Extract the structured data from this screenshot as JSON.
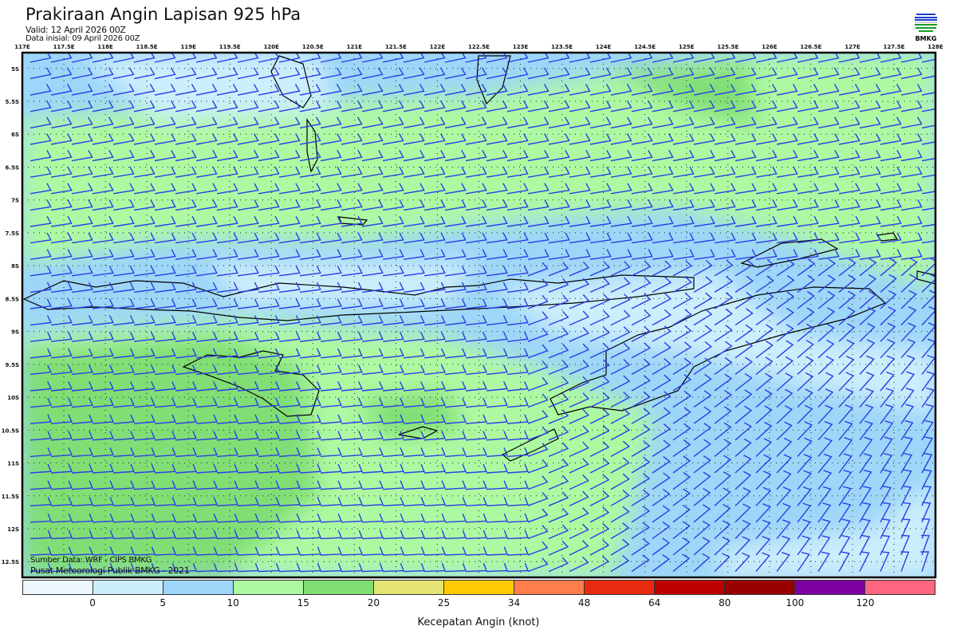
{
  "header": {
    "title": "Prakiraan Angin Lapisan 925 hPa",
    "valid": "Valid: 12 April 2026 00Z",
    "initial": "Data inisial: 09 April 2026 00Z",
    "logo_text": "BMKG"
  },
  "map": {
    "lon_labels": [
      "117E",
      "117.5E",
      "118E",
      "118.5E",
      "119E",
      "119.5E",
      "120E",
      "120.5E",
      "121E",
      "121.5E",
      "122E",
      "122.5E",
      "123E",
      "123.5E",
      "124E",
      "124.5E",
      "125E",
      "125.5E",
      "126E",
      "126.5E",
      "127E",
      "127.5E",
      "128E"
    ],
    "lat_labels": [
      "5S",
      "5.5S",
      "6S",
      "6.5S",
      "7S",
      "7.5S",
      "8S",
      "8.5S",
      "9S",
      "9.5S",
      "10S",
      "10.5S",
      "11S",
      "11.5S",
      "12S",
      "12.5S"
    ],
    "lon_range": [
      117,
      128
    ],
    "lat_range": [
      -4.76,
      -12.74
    ],
    "barb_color": "#2b3de8",
    "coastline_color": "#000000"
  },
  "credits": {
    "source": "Sumber Data: WRF - CIPS BMKG",
    "org": "Pusat Meteorologi Publik BMKG - 2021"
  },
  "legend": {
    "title": "Kecepatan Angin (knot)",
    "labels": [
      "0",
      "5",
      "10",
      "15",
      "20",
      "25",
      "34",
      "48",
      "64",
      "80",
      "100",
      "120"
    ],
    "colors": [
      "#eef6fd",
      "#cdeefc",
      "#9dd6f8",
      "#adf9a2",
      "#80de74",
      "#e4e474",
      "#fecb00",
      "#ff7e4b",
      "#e82a10",
      "#bf0000",
      "#980000",
      "#7d00a0",
      "#ff6680"
    ]
  }
}
